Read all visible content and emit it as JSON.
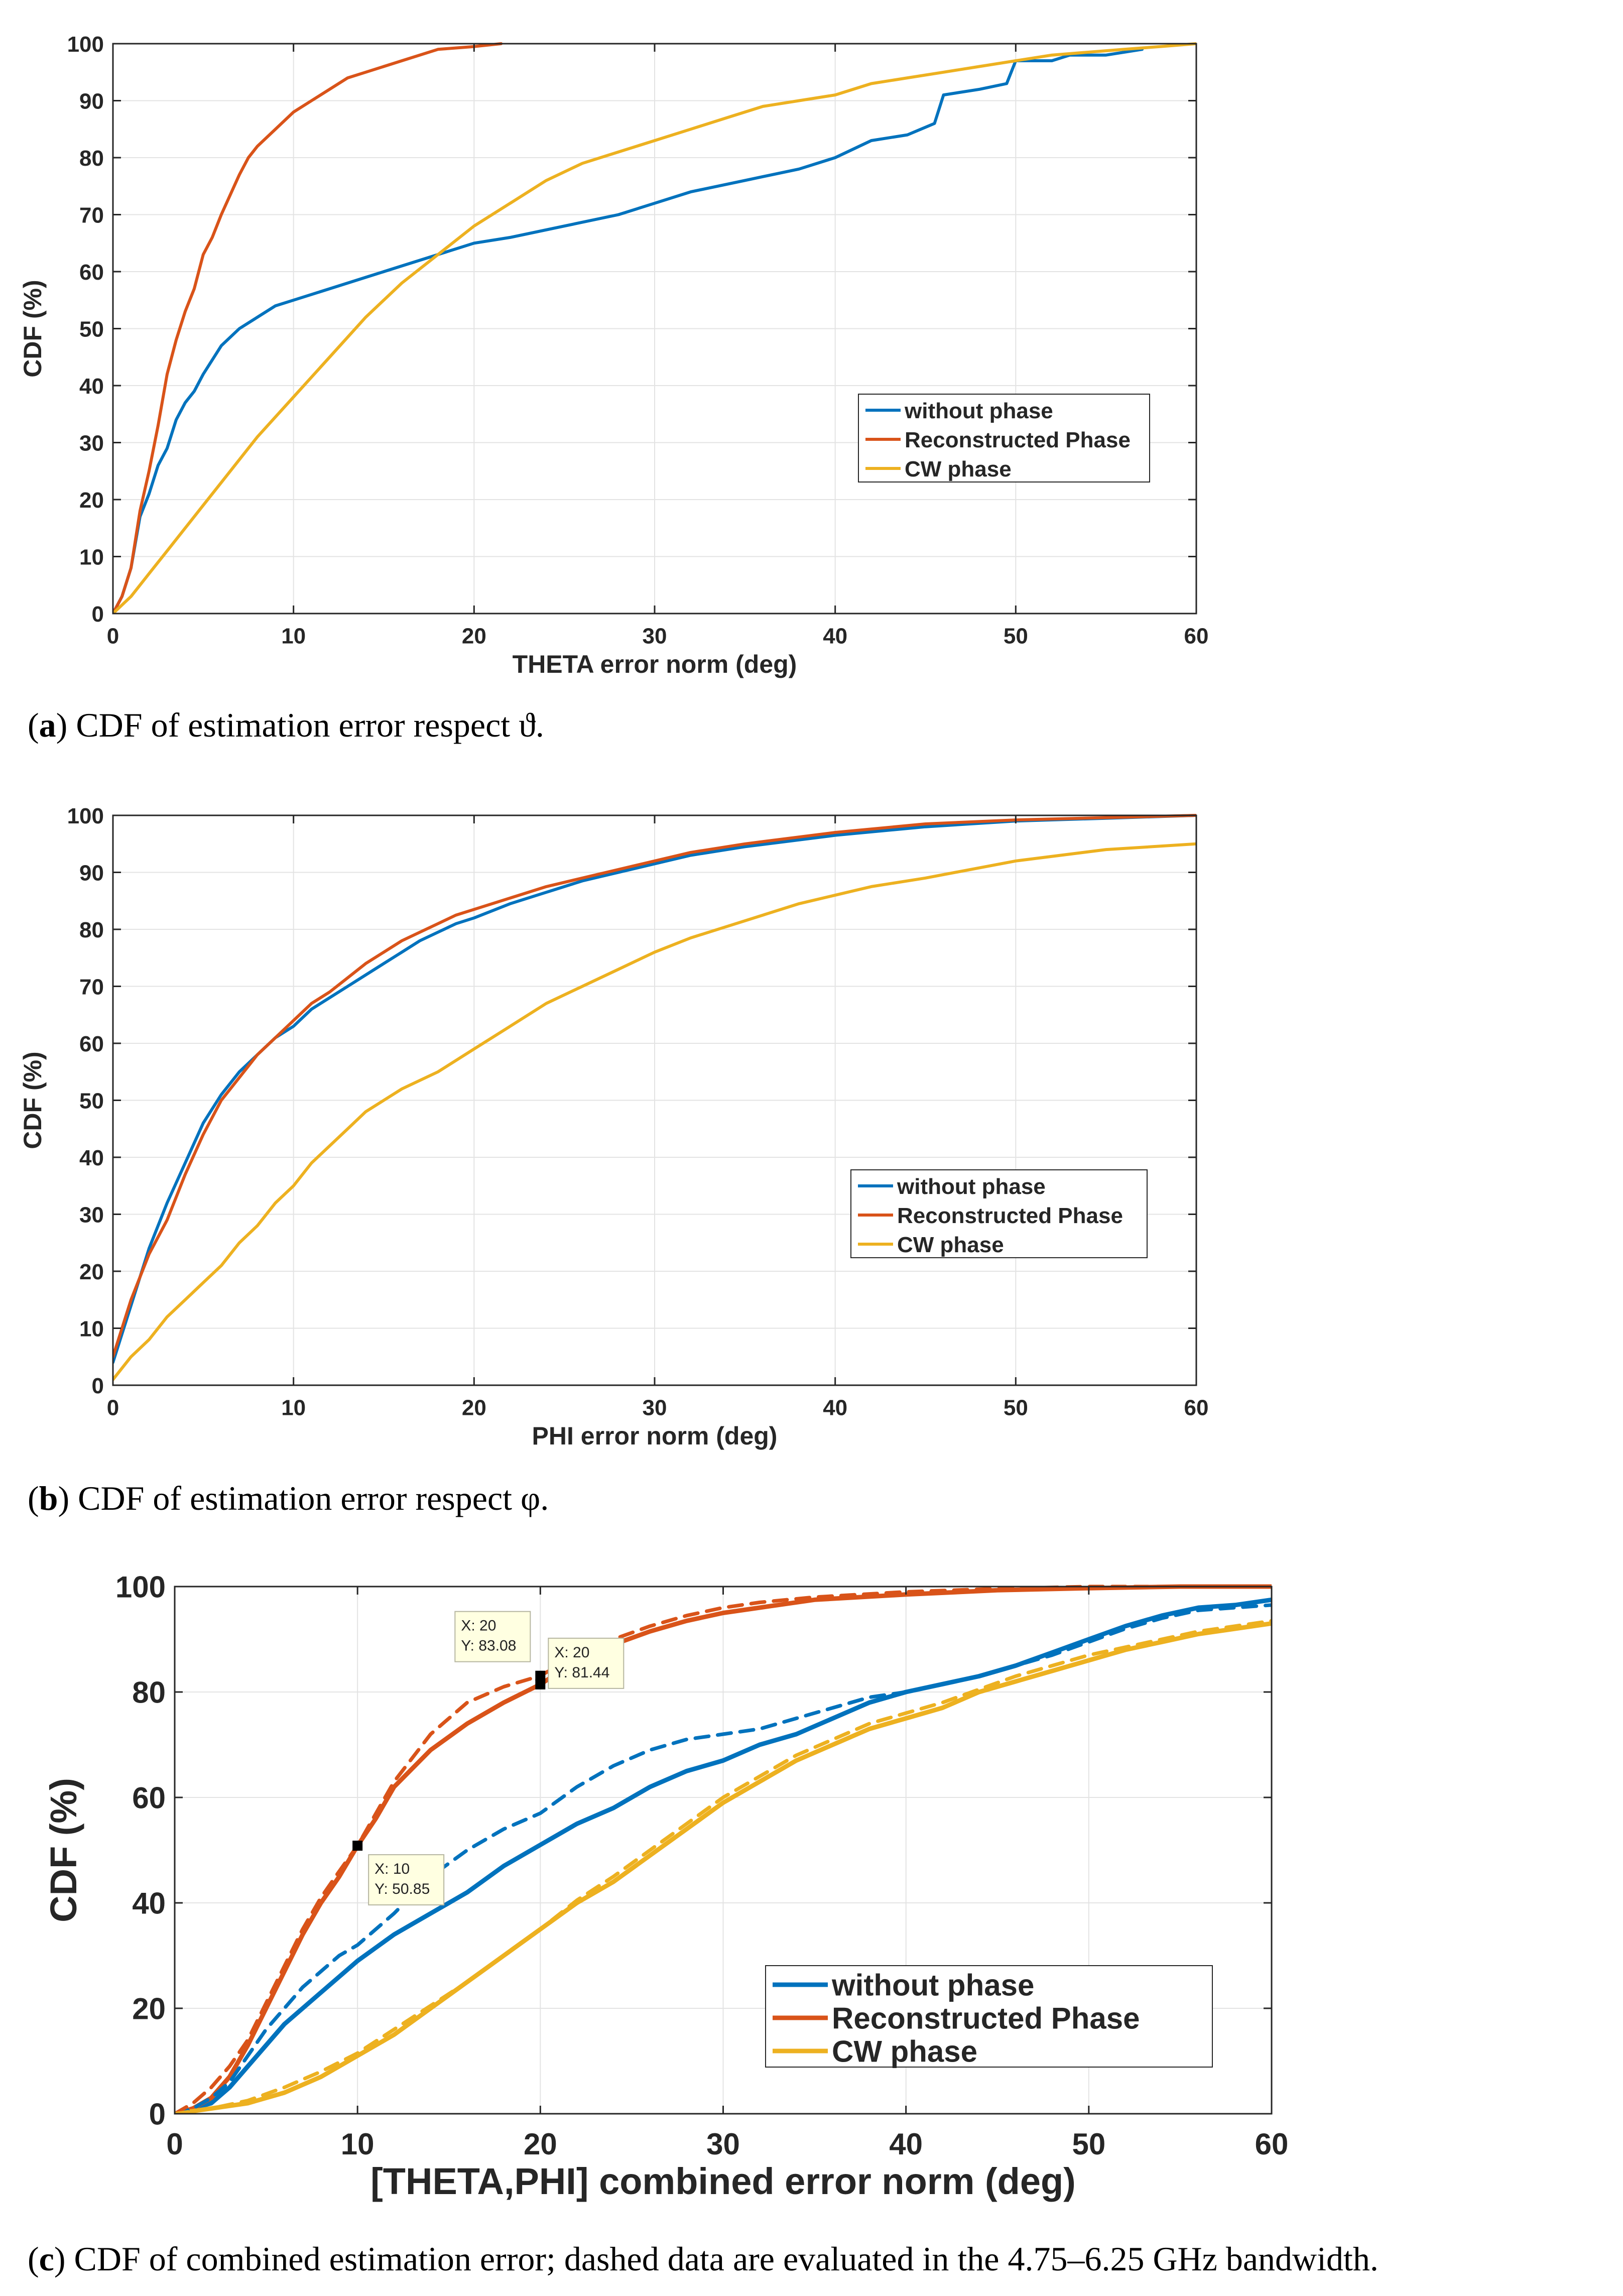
{
  "figure": {
    "panels": [
      {
        "caption": {
          "letter": "a",
          "text": "CDF of estimation error respect ϑ."
        }
      },
      {
        "caption": {
          "letter": "b",
          "text": "CDF of estimation error respect φ."
        }
      },
      {
        "caption": {
          "letter": "c",
          "text": "CDF of combined estimation error; dashed data are evaluated in the 4.75–6.25 GHz bandwidth."
        }
      }
    ]
  },
  "colors": {
    "blue": "#0072BD",
    "orange": "#D95319",
    "yellow": "#EDB120"
  },
  "chart_data": [
    {
      "type": "line",
      "title": "",
      "xlabel": "THETA error norm (deg)",
      "ylabel": "CDF (%)",
      "xlim": [
        0,
        60
      ],
      "ylim": [
        0,
        100
      ],
      "xticks": [
        0,
        10,
        20,
        30,
        40,
        50,
        60
      ],
      "yticks": [
        0,
        10,
        20,
        30,
        40,
        50,
        60,
        70,
        80,
        90,
        100
      ],
      "grid": true,
      "legend_position": "center-right",
      "series": [
        {
          "name": "without phase",
          "color": "#0072BD",
          "style": "solid",
          "x": [
            0,
            0.5,
            1,
            1.5,
            2,
            2.5,
            3,
            3.5,
            4,
            4.5,
            5,
            6,
            7,
            8,
            9,
            10,
            12,
            14,
            16,
            18,
            20,
            22,
            25,
            28,
            30,
            32,
            35,
            38,
            40,
            42,
            44,
            45.5,
            46,
            48,
            49.5,
            50,
            52,
            53,
            55,
            57
          ],
          "y": [
            0,
            3,
            8,
            17,
            21,
            26,
            29,
            34,
            37,
            39,
            42,
            47,
            50,
            52,
            54,
            55,
            57,
            59,
            61,
            63,
            65,
            66,
            68,
            70,
            72,
            74,
            76,
            78,
            80,
            83,
            84,
            86,
            91,
            92,
            93,
            97,
            97,
            98,
            98,
            99
          ]
        },
        {
          "name": "Reconstructed Phase",
          "color": "#D95319",
          "style": "solid",
          "x": [
            0,
            0.5,
            1,
            1.5,
            2,
            2.5,
            3,
            3.5,
            4,
            4.5,
            5,
            5.5,
            6,
            7,
            7.5,
            8,
            9,
            10,
            11,
            12,
            13,
            14,
            16,
            18,
            20,
            21.5
          ],
          "y": [
            0,
            3,
            8,
            18,
            25,
            33,
            42,
            48,
            53,
            57,
            63,
            66,
            70,
            77,
            80,
            82,
            85,
            88,
            90,
            92,
            94,
            95,
            97,
            99,
            99.5,
            100
          ]
        },
        {
          "name": "CW phase",
          "color": "#EDB120",
          "style": "solid",
          "x": [
            0,
            1,
            2,
            3,
            4,
            5,
            6,
            8,
            10,
            12,
            14,
            16,
            18,
            20,
            22,
            24,
            26,
            28,
            30,
            32,
            34,
            36,
            38,
            40,
            42,
            44,
            46,
            48,
            50,
            52,
            54,
            56,
            58,
            60
          ],
          "y": [
            0,
            3,
            7,
            11,
            15,
            19,
            23,
            31,
            38,
            45,
            52,
            58,
            63,
            68,
            72,
            76,
            79,
            81,
            83,
            85,
            87,
            89,
            90,
            91,
            93,
            94,
            95,
            96,
            97,
            98,
            98.5,
            99,
            99.5,
            100
          ]
        }
      ]
    },
    {
      "type": "line",
      "title": "",
      "xlabel": "PHI error norm (deg)",
      "ylabel": "CDF (%)",
      "xlim": [
        0,
        60
      ],
      "ylim": [
        0,
        100
      ],
      "xticks": [
        0,
        10,
        20,
        30,
        40,
        50,
        60
      ],
      "yticks": [
        0,
        10,
        20,
        30,
        40,
        50,
        60,
        70,
        80,
        90,
        100
      ],
      "grid": true,
      "legend_position": "center-right",
      "series": [
        {
          "name": "without phase",
          "color": "#0072BD",
          "style": "solid",
          "x": [
            0,
            1,
            2,
            3,
            4,
            5,
            6,
            7,
            8,
            9,
            10,
            11,
            12,
            13,
            14,
            15,
            16,
            17,
            18,
            19,
            20,
            22,
            24,
            26,
            28,
            30,
            32,
            35,
            40,
            45,
            50,
            55,
            60
          ],
          "y": [
            4,
            14,
            24,
            32,
            39,
            46,
            51,
            55,
            58,
            61,
            63,
            66,
            68,
            70,
            72,
            74,
            76,
            78,
            79.5,
            81,
            82,
            84.5,
            86.5,
            88.5,
            90,
            91.5,
            93,
            94.5,
            96.5,
            98,
            99,
            99.5,
            100
          ]
        },
        {
          "name": "Reconstructed Phase",
          "color": "#D95319",
          "style": "solid",
          "x": [
            0,
            1,
            2,
            3,
            4,
            5,
            6,
            7,
            8,
            9,
            10,
            11,
            12,
            13,
            14,
            15,
            16,
            17,
            18,
            19,
            20,
            22,
            24,
            26,
            28,
            30,
            32,
            35,
            40,
            45,
            50,
            55,
            60
          ],
          "y": [
            5,
            15,
            23,
            29,
            37,
            44,
            50,
            54,
            58,
            61,
            64,
            67,
            69,
            71.5,
            74,
            76,
            78,
            79.5,
            81,
            82.5,
            83.5,
            85.5,
            87.5,
            89,
            90.5,
            92,
            93.5,
            95,
            97,
            98.5,
            99.2,
            99.6,
            100
          ]
        },
        {
          "name": "CW phase",
          "color": "#EDB120",
          "style": "solid",
          "x": [
            0,
            1,
            2,
            3,
            4,
            5,
            6,
            7,
            8,
            9,
            10,
            11,
            12,
            13,
            14,
            15,
            16,
            18,
            20,
            22,
            24,
            26,
            28,
            30,
            32,
            34,
            36,
            38,
            40,
            42,
            45,
            50,
            55,
            60
          ],
          "y": [
            1,
            5,
            8,
            12,
            15,
            18,
            21,
            25,
            28,
            32,
            35,
            39,
            42,
            45,
            48,
            50,
            52,
            55,
            59,
            63,
            67,
            70,
            73,
            76,
            78.5,
            80.5,
            82.5,
            84.5,
            86,
            87.5,
            89,
            92,
            94,
            95
          ]
        }
      ]
    },
    {
      "type": "line",
      "title": "",
      "xlabel": "[THETA,PHI] combined error norm (deg)",
      "ylabel": "CDF (%)",
      "xlim": [
        0,
        60
      ],
      "ylim": [
        0,
        100
      ],
      "xticks": [
        0,
        10,
        20,
        30,
        40,
        50,
        60
      ],
      "yticks": [
        0,
        20,
        40,
        60,
        80,
        100
      ],
      "grid": true,
      "legend_position": "bottom-right",
      "series": [
        {
          "name": "without phase",
          "color": "#0072BD",
          "style": "solid",
          "x": [
            0,
            1,
            2,
            3,
            4,
            5,
            6,
            7,
            8,
            9,
            10,
            12,
            14,
            16,
            18,
            20,
            22,
            24,
            26,
            28,
            30,
            32,
            34,
            36,
            38,
            40,
            42,
            44,
            46,
            48,
            50,
            52,
            54,
            56,
            58,
            60
          ],
          "y": [
            0,
            1,
            2,
            5,
            9,
            13,
            17,
            20,
            23,
            26,
            29,
            34,
            38,
            42,
            47,
            51,
            55,
            58,
            62,
            65,
            67,
            70,
            72,
            75,
            78,
            80,
            81.5,
            83,
            85,
            87.5,
            90,
            92.5,
            94.5,
            96,
            96.5,
            97.5
          ]
        },
        {
          "name": "Reconstructed Phase",
          "color": "#D95319",
          "style": "solid",
          "x": [
            0,
            1,
            2,
            3,
            4,
            5,
            6,
            7,
            8,
            9,
            10,
            11,
            12,
            14,
            16,
            18,
            20,
            22,
            24,
            26,
            28,
            30,
            32,
            35,
            40,
            45,
            50,
            55,
            60
          ],
          "y": [
            0,
            1,
            3,
            7,
            13,
            20,
            27,
            34,
            40,
            45,
            50.85,
            56,
            62,
            69,
            74,
            78,
            81.44,
            86,
            89,
            91.5,
            93.5,
            95,
            96,
            97.5,
            98.5,
            99.3,
            99.7,
            100,
            100
          ]
        },
        {
          "name": "CW phase",
          "color": "#EDB120",
          "style": "solid",
          "x": [
            0,
            2,
            4,
            6,
            8,
            10,
            12,
            14,
            16,
            18,
            20,
            22,
            24,
            26,
            28,
            30,
            32,
            34,
            36,
            38,
            40,
            42,
            44,
            46,
            48,
            50,
            52,
            54,
            56,
            58,
            60
          ],
          "y": [
            0,
            1,
            2,
            4,
            7,
            11,
            15,
            20,
            25,
            30,
            35,
            40,
            44,
            49,
            54,
            59,
            63,
            67,
            70,
            73,
            75,
            77,
            80,
            82,
            84,
            86,
            88,
            89.5,
            91,
            92,
            93
          ]
        },
        {
          "name": "without phase (4.75–6.25 GHz)",
          "color": "#0072BD",
          "style": "dashed",
          "in_legend": false,
          "x": [
            0,
            1,
            2,
            3,
            4,
            5,
            6,
            7,
            8,
            9,
            10,
            12,
            14,
            16,
            18,
            20,
            22,
            24,
            26,
            28,
            30,
            32,
            34,
            36,
            38,
            40,
            42,
            44,
            46,
            48,
            50,
            52,
            54,
            56,
            58,
            60
          ],
          "y": [
            0,
            1,
            3,
            6,
            11,
            16,
            20,
            24,
            27,
            30,
            32,
            38,
            45,
            50,
            54,
            57,
            62,
            66,
            69,
            71,
            72,
            73,
            75,
            77,
            79,
            80,
            81.5,
            83,
            85,
            87,
            89.5,
            92,
            94,
            95.5,
            96,
            96.5
          ]
        },
        {
          "name": "Reconstructed Phase (4.75–6.25 GHz)",
          "color": "#D95319",
          "style": "dashed",
          "in_legend": false,
          "x": [
            0,
            1,
            2,
            3,
            4,
            5,
            6,
            7,
            8,
            9,
            10,
            12,
            14,
            16,
            18,
            20,
            22,
            24,
            26,
            28,
            30,
            32,
            35,
            40,
            45,
            50,
            55,
            60
          ],
          "y": [
            0,
            2,
            5,
            9,
            14,
            21,
            28,
            35,
            41,
            46,
            50.85,
            63,
            72,
            78,
            81,
            83.08,
            87,
            90,
            92.5,
            94.5,
            96,
            97,
            98,
            99,
            99.6,
            100,
            100,
            100
          ]
        },
        {
          "name": "CW phase (4.75–6.25 GHz)",
          "color": "#EDB120",
          "style": "dashed",
          "in_legend": false,
          "x": [
            0,
            2,
            4,
            6,
            8,
            10,
            12,
            14,
            16,
            18,
            20,
            22,
            24,
            26,
            28,
            30,
            32,
            34,
            36,
            38,
            40,
            42,
            44,
            46,
            48,
            50,
            52,
            54,
            56,
            58,
            60
          ],
          "y": [
            0,
            1,
            2.5,
            5,
            8,
            11.5,
            16,
            20.5,
            25,
            30,
            35,
            40.5,
            45,
            50,
            55,
            60,
            64,
            68,
            71,
            74,
            76,
            78,
            80.5,
            83,
            85,
            87,
            88.5,
            90,
            91.5,
            92.5,
            93.5
          ]
        }
      ],
      "annotations": [
        {
          "x": 20,
          "y": 83.08,
          "lines": [
            "X: 20",
            "Y: 83.08"
          ],
          "side": "upper-left"
        },
        {
          "x": 20,
          "y": 81.44,
          "lines": [
            "X: 20",
            "Y: 81.44"
          ],
          "side": "upper-right"
        },
        {
          "x": 10,
          "y": 50.85,
          "lines": [
            "X: 10",
            "Y: 50.85"
          ],
          "side": "lower-right"
        }
      ]
    }
  ]
}
